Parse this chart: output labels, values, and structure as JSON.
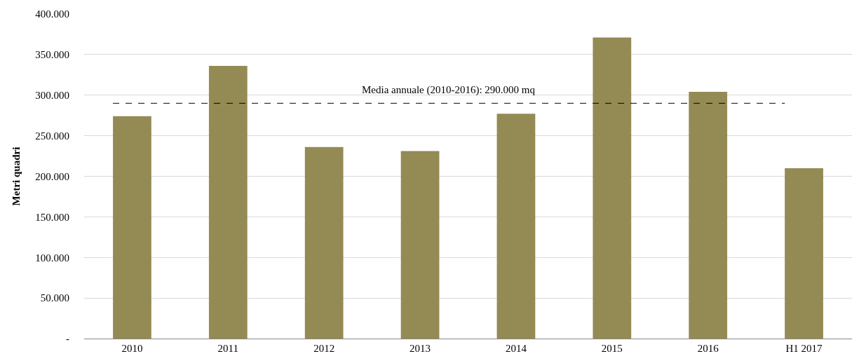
{
  "chart_data": {
    "type": "bar",
    "ylabel": "Metri quadri",
    "categories": [
      "2010",
      "2011",
      "2012",
      "2013",
      "2014",
      "2015",
      "2016",
      "H1 2017"
    ],
    "values": [
      274000,
      336000,
      236000,
      231000,
      277000,
      371000,
      304000,
      210000
    ],
    "color": "#948a54",
    "ylim": [
      0,
      400000
    ],
    "yticks": [
      {
        "value": 0,
        "label": "-"
      },
      {
        "value": 50000,
        "label": "50.000"
      },
      {
        "value": 100000,
        "label": "100.000"
      },
      {
        "value": 150000,
        "label": "150.000"
      },
      {
        "value": 200000,
        "label": "200.000"
      },
      {
        "value": 250000,
        "label": "250.000"
      },
      {
        "value": 300000,
        "label": "300.000"
      },
      {
        "value": 350000,
        "label": "350.000"
      },
      {
        "value": 400000,
        "label": "400.000"
      }
    ],
    "grid": "y",
    "legend": false,
    "ref_lines": [
      {
        "axis": "y",
        "value": 290000,
        "label": "Media annuale (2010-2016): 290.000 mq",
        "color": "#000000",
        "line_style": "dashed"
      }
    ]
  }
}
